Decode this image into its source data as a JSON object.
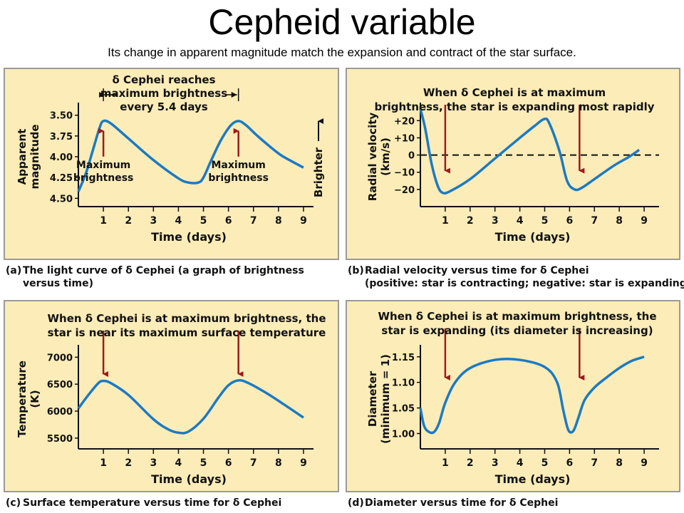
{
  "title": "Cepheid variable",
  "subtitle": "Its change in apparent magnitude match the expansion and contract of the star surface.",
  "colors": {
    "curve": "#1b7ac4",
    "arrow": "#9b1b1b",
    "panel": "#fbecb8",
    "text": "#111111"
  },
  "chart_data": [
    {
      "type": "line",
      "caption_tag": "(a)",
      "caption": [
        "The light curve of δ Cephei (a graph of brightness",
        "versus time)"
      ],
      "annotation": [
        "δ Cephei reaches",
        "maximum brightness",
        "every 5.4 days"
      ],
      "xlabel": "Time (days)",
      "ylabel": [
        "Apparent",
        "magnitude"
      ],
      "side_label": "Brighter",
      "xlim": [
        0,
        9.4
      ],
      "ylim": [
        4.6,
        3.4
      ],
      "xticks": [
        1,
        2,
        3,
        4,
        5,
        6,
        7,
        8,
        9
      ],
      "yticks": [
        3.5,
        3.75,
        4.0,
        4.25,
        4.5
      ],
      "ytick_labels": [
        "3.50",
        "3.75",
        "4.00",
        "4.25",
        "4.50"
      ],
      "markers": [
        {
          "x": 1.0,
          "label": [
            "Maximum",
            "brightness"
          ]
        },
        {
          "x": 6.4,
          "label": [
            "Maximum",
            "brightness"
          ]
        }
      ],
      "series": [
        {
          "x": [
            0,
            0.3,
            0.6,
            0.85,
            1.0,
            1.3,
            2.0,
            3.0,
            4.0,
            4.4,
            4.8,
            5.0,
            5.3,
            5.7,
            6.1,
            6.4,
            6.7,
            7.2,
            8.0,
            8.5,
            9.0
          ],
          "y": [
            4.42,
            4.2,
            3.9,
            3.65,
            3.57,
            3.6,
            3.78,
            4.04,
            4.26,
            4.31,
            4.31,
            4.25,
            4.05,
            3.8,
            3.62,
            3.57,
            3.62,
            3.76,
            3.96,
            4.05,
            4.13
          ]
        }
      ]
    },
    {
      "type": "line",
      "caption_tag": "(b)",
      "caption": [
        "Radial velocity versus time for δ Cephei",
        "(positive: star is contracting; negative: star is expanding)"
      ],
      "annotation": [
        "When δ Cephei is at maximum",
        "brightness, the star is expanding most rapidly"
      ],
      "xlabel": "Time (days)",
      "ylabel": [
        "Radial velocity",
        "(km/s)"
      ],
      "xlim": [
        0,
        9.6
      ],
      "ylim": [
        -30,
        28
      ],
      "xticks": [
        1,
        2,
        3,
        4,
        5,
        6,
        7,
        8,
        9
      ],
      "yticks": [
        20,
        10,
        0,
        -10,
        -20
      ],
      "ytick_labels": [
        "+20",
        "+10",
        "0",
        "−10",
        "−20"
      ],
      "zero_line": true,
      "markers": [
        {
          "x": 1.0,
          "label": []
        },
        {
          "x": 6.4,
          "label": []
        }
      ],
      "series": [
        {
          "x": [
            0,
            0.2,
            0.45,
            0.7,
            0.9,
            1.2,
            2.0,
            3.0,
            4.0,
            4.6,
            5.0,
            5.2,
            5.6,
            5.9,
            6.2,
            6.5,
            7.0,
            7.8,
            8.4,
            8.8
          ],
          "y": [
            27,
            15,
            -5,
            -18,
            -22,
            -21,
            -14,
            -2,
            10,
            17,
            21,
            18,
            2,
            -15,
            -20,
            -19,
            -14,
            -6,
            -1,
            3
          ]
        }
      ]
    },
    {
      "type": "line",
      "caption_tag": "(c)",
      "caption": [
        "Surface temperature versus time for δ Cephei"
      ],
      "annotation": [
        "When δ Cephei is at maximum brightness, the",
        "star is near its maximum surface temperature"
      ],
      "xlabel": "Time (days)",
      "ylabel": [
        "Temperature",
        "(K)"
      ],
      "xlim": [
        0,
        9.4
      ],
      "ylim": [
        5300,
        7150
      ],
      "xticks": [
        1,
        2,
        3,
        4,
        5,
        6,
        7,
        8,
        9
      ],
      "yticks": [
        7000,
        6500,
        6000,
        5500
      ],
      "ytick_labels": [
        "7000",
        "6500",
        "6000",
        "5500"
      ],
      "markers": [
        {
          "x": 1.0,
          "label": []
        },
        {
          "x": 6.4,
          "label": []
        }
      ],
      "series": [
        {
          "x": [
            0,
            0.4,
            0.8,
            1.0,
            1.3,
            2.0,
            3.0,
            3.6,
            4.0,
            4.4,
            5.0,
            5.6,
            6.0,
            6.4,
            6.8,
            7.5,
            8.2,
            9.0
          ],
          "y": [
            6050,
            6300,
            6520,
            6560,
            6520,
            6300,
            5850,
            5660,
            5600,
            5620,
            5860,
            6250,
            6480,
            6570,
            6520,
            6340,
            6130,
            5880
          ]
        }
      ]
    },
    {
      "type": "line",
      "caption_tag": "(d)",
      "caption": [
        "Diameter versus time for δ Cephei"
      ],
      "annotation": [
        "When δ Cephei is at maximum brightness, the",
        "star is expanding (its diameter is increasing)"
      ],
      "xlabel": "Time (days)",
      "ylabel": [
        "Diameter",
        "(minimum = 1)"
      ],
      "xlim": [
        0,
        9.6
      ],
      "ylim": [
        0.97,
        1.165
      ],
      "xticks": [
        1,
        2,
        3,
        4,
        5,
        6,
        7,
        8,
        9
      ],
      "yticks": [
        1.15,
        1.1,
        1.05,
        1.0
      ],
      "ytick_labels": [
        "1.15",
        "1.10",
        "1.05",
        "1.00"
      ],
      "markers": [
        {
          "x": 1.0,
          "label": []
        },
        {
          "x": 6.4,
          "label": []
        }
      ],
      "series": [
        {
          "x": [
            0,
            0.15,
            0.35,
            0.55,
            0.75,
            1.0,
            1.4,
            2.0,
            3.0,
            4.0,
            5.0,
            5.5,
            5.75,
            5.95,
            6.15,
            6.35,
            6.6,
            7.0,
            7.5,
            8.0,
            8.5,
            9.0
          ],
          "y": [
            1.05,
            1.015,
            1.003,
            1.003,
            1.02,
            1.06,
            1.1,
            1.128,
            1.144,
            1.144,
            1.13,
            1.1,
            1.045,
            1.007,
            1.005,
            1.03,
            1.065,
            1.09,
            1.11,
            1.128,
            1.142,
            1.15
          ]
        }
      ]
    }
  ]
}
